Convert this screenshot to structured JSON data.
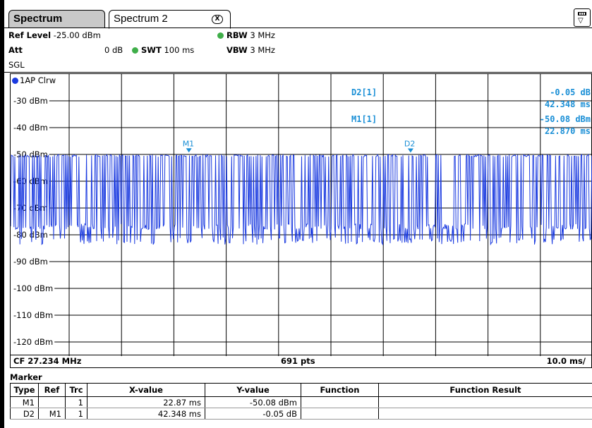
{
  "tabs": [
    {
      "label": "Spectrum",
      "active": false
    },
    {
      "label": "Spectrum 2",
      "active": true,
      "close_icon": "X"
    }
  ],
  "settings": {
    "ref_level_label": "Ref Level",
    "ref_level_value": "-25.00 dBm",
    "att_label": "Att",
    "att_value": "0 dB",
    "swt_label": "SWT",
    "swt_value": "100 ms",
    "rbw_label": "RBW",
    "rbw_value": "3 MHz",
    "vbw_label": "VBW",
    "vbw_value": "3 MHz",
    "mode": "SGL",
    "indicator_color": "#3fae49"
  },
  "trace": {
    "label": "1AP Clrw",
    "color": "#1a3ae0"
  },
  "marker_readouts": [
    {
      "name": "D2[1]",
      "value": "-0.05 dB",
      "x": "42.348 ms"
    },
    {
      "name": "M1[1]",
      "value": "-50.08 dBm",
      "x": "22.870 ms"
    }
  ],
  "chart_data": {
    "type": "line",
    "y_tick_labels": [
      "-30 dBm",
      "-40 dBm",
      "-50 dBm",
      "-60 dBm",
      "-70 dBm",
      "-80 dBm",
      "-90 dBm",
      "-100 dBm",
      "-110 dBm",
      "-120 dBm"
    ],
    "ylim": [
      -130,
      -25
    ],
    "xlim_ms": [
      0,
      100
    ],
    "grid": true,
    "trace_color": "#1a3ae0",
    "marker_color": "#1a8fd6",
    "signal_level_high_dBm": -50.1,
    "signal_level_low_dBm": -78,
    "noise_floor_dBm": -81,
    "markers": [
      {
        "label": "M1",
        "x_ms": 22.87,
        "y_dBm": -50.08
      },
      {
        "label": "D2",
        "x_ms": 65.218,
        "y_dBm": -50.13
      }
    ]
  },
  "footer": {
    "center_freq": "CF 27.234 MHz",
    "points": "691 pts",
    "scale": "10.0 ms/"
  },
  "marker_table": {
    "title": "Marker",
    "headers": [
      "Type",
      "Ref",
      "Trc",
      "X-value",
      "Y-value",
      "Function",
      "Function Result"
    ],
    "rows": [
      [
        "M1",
        "",
        "1",
        "22.87 ms",
        "-50.08 dBm",
        "",
        ""
      ],
      [
        "D2",
        "M1",
        "1",
        "42.348 ms",
        "-0.05 dB",
        "",
        ""
      ]
    ]
  }
}
